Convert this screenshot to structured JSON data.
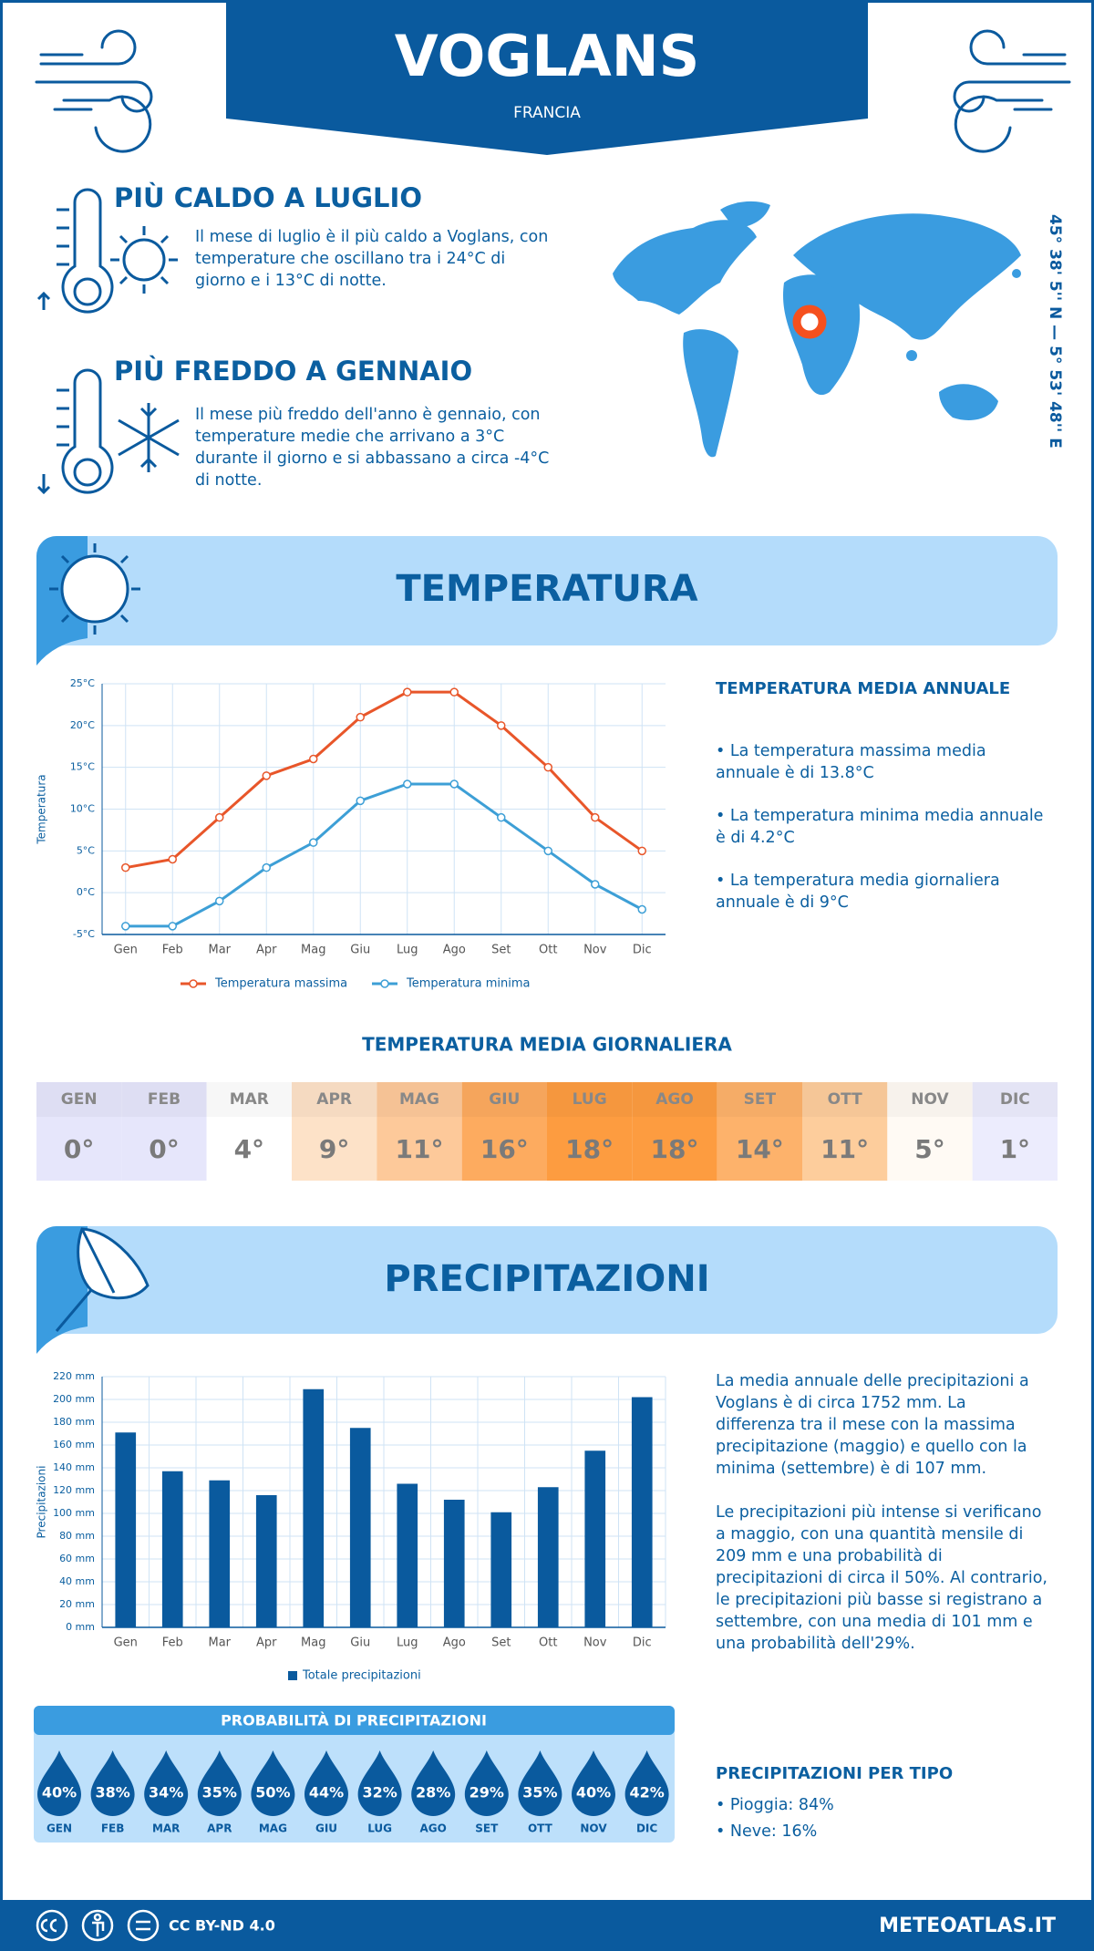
{
  "header": {
    "title": "VOGLANS",
    "subtitle": "FRANCIA"
  },
  "warmest": {
    "title": "PIÙ CALDO A LUGLIO",
    "text": "Il mese di luglio è il più caldo a Voglans, con temperature che oscillano tra i 24°C di giorno e i 13°C di notte."
  },
  "coldest": {
    "title": "PIÙ FREDDO A GENNAIO",
    "text": "Il mese più freddo dell'anno è gennaio, con temperature medie che arrivano a 3°C durante il giorno e si abbassano a circa -4°C di notte."
  },
  "coordinates": "45° 38' 5'' N — 5° 53' 48'' E",
  "temperature_section": {
    "title": "TEMPERATURA"
  },
  "annual_temperature": {
    "title": "TEMPERATURA MEDIA ANNUALE",
    "items": [
      "La temperatura massima media annuale è di 13.8°C",
      "La temperatura minima media annuale è di 4.2°C",
      "La temperatura media giornaliera annuale è di 9°C"
    ]
  },
  "daily_temperature": {
    "title": "TEMPERATURA MEDIA GIORNALIERA",
    "months": [
      "GEN",
      "FEB",
      "MAR",
      "APR",
      "MAG",
      "GIU",
      "LUG",
      "AGO",
      "SET",
      "OTT",
      "NOV",
      "DIC"
    ],
    "values": [
      0,
      0,
      4,
      9,
      11,
      16,
      18,
      18,
      14,
      11,
      5,
      1
    ],
    "value_labels": [
      "0°",
      "0°",
      "4°",
      "9°",
      "11°",
      "16°",
      "18°",
      "18°",
      "14°",
      "11°",
      "5°",
      "1°"
    ],
    "colors": [
      "#e6e6fb",
      "#e6e6fb",
      "#ffffff",
      "#fde2c8",
      "#fdc99a",
      "#fdab5f",
      "#fd9c40",
      "#fd9c40",
      "#fdb26b",
      "#fdcd9c",
      "#fffaf4",
      "#ececfd"
    ]
  },
  "precipitation_section": {
    "title": "PRECIPITAZIONI"
  },
  "precipitation_text": [
    "La media annuale delle precipitazioni a Voglans è di circa 1752 mm. La differenza tra il mese con la massima precipitazione (maggio) e quello con la minima (settembre) è di 107 mm.",
    "Le precipitazioni più intense si verificano a maggio, con una quantità mensile di 209 mm e una probabilità di precipitazioni di circa il 50%. Al contrario, le precipitazioni più basse si registrano a settembre, con una media di 101 mm e una probabilità dell'29%."
  ],
  "precipitation_probability": {
    "title": "PROBABILITÀ DI PRECIPITAZIONI",
    "months": [
      "GEN",
      "FEB",
      "MAR",
      "APR",
      "MAG",
      "GIU",
      "LUG",
      "AGO",
      "SET",
      "OTT",
      "NOV",
      "DIC"
    ],
    "values": [
      40,
      38,
      34,
      35,
      50,
      44,
      32,
      28,
      29,
      35,
      40,
      42
    ],
    "value_labels": [
      "40%",
      "38%",
      "34%",
      "35%",
      "50%",
      "44%",
      "32%",
      "28%",
      "29%",
      "35%",
      "40%",
      "42%"
    ]
  },
  "precipitation_type": {
    "title": "PRECIPITAZIONI PER TIPO",
    "items": [
      "Pioggia: 84%",
      "Neve: 16%"
    ]
  },
  "footer": {
    "license": "CC BY-ND 4.0",
    "site": "METEOATLAS.IT"
  },
  "chart_data": [
    {
      "type": "line",
      "y_label": "Temperatura",
      "categories": [
        "Gen",
        "Feb",
        "Mar",
        "Apr",
        "Mag",
        "Giu",
        "Lug",
        "Ago",
        "Set",
        "Ott",
        "Nov",
        "Dic"
      ],
      "series": [
        {
          "name": "Temperatura massima",
          "color": "#e8562a",
          "values": [
            3,
            4,
            9,
            14,
            16,
            21,
            24,
            24,
            20,
            15,
            9,
            5
          ]
        },
        {
          "name": "Temperatura minima",
          "color": "#3d9fd6",
          "values": [
            -4,
            -4,
            -1,
            3,
            6,
            11,
            13,
            13,
            9,
            5,
            1,
            -2
          ]
        }
      ],
      "ylim": [
        -5,
        25
      ],
      "yticks": [
        {
          "value": -5,
          "label": "-5°C"
        },
        {
          "value": 0,
          "label": "0°C"
        },
        {
          "value": 5,
          "label": "5°C"
        },
        {
          "value": 10,
          "label": "10°C"
        },
        {
          "value": 15,
          "label": "15°C"
        },
        {
          "value": 20,
          "label": "20°C"
        },
        {
          "value": 25,
          "label": "25°C"
        }
      ],
      "grid": true
    },
    {
      "type": "bar",
      "y_label": "Precipitazioni",
      "categories": [
        "Gen",
        "Feb",
        "Mar",
        "Apr",
        "Mag",
        "Giu",
        "Lug",
        "Ago",
        "Set",
        "Ott",
        "Nov",
        "Dic"
      ],
      "series": [
        {
          "name": "Totale precipitazioni",
          "color": "#0a5a9e",
          "values": [
            171,
            137,
            129,
            116,
            209,
            175,
            126,
            112,
            101,
            123,
            155,
            202
          ]
        }
      ],
      "ylim": [
        0,
        220
      ],
      "yticks": [
        {
          "value": 0,
          "label": "0 mm"
        },
        {
          "value": 20,
          "label": "20 mm"
        },
        {
          "value": 40,
          "label": "40 mm"
        },
        {
          "value": 60,
          "label": "60 mm"
        },
        {
          "value": 80,
          "label": "80 mm"
        },
        {
          "value": 100,
          "label": "100 mm"
        },
        {
          "value": 120,
          "label": "120 mm"
        },
        {
          "value": 140,
          "label": "140 mm"
        },
        {
          "value": 160,
          "label": "160 mm"
        },
        {
          "value": 180,
          "label": "180 mm"
        },
        {
          "value": 200,
          "label": "200 mm"
        },
        {
          "value": 220,
          "label": "220 mm"
        }
      ],
      "grid": true
    }
  ]
}
